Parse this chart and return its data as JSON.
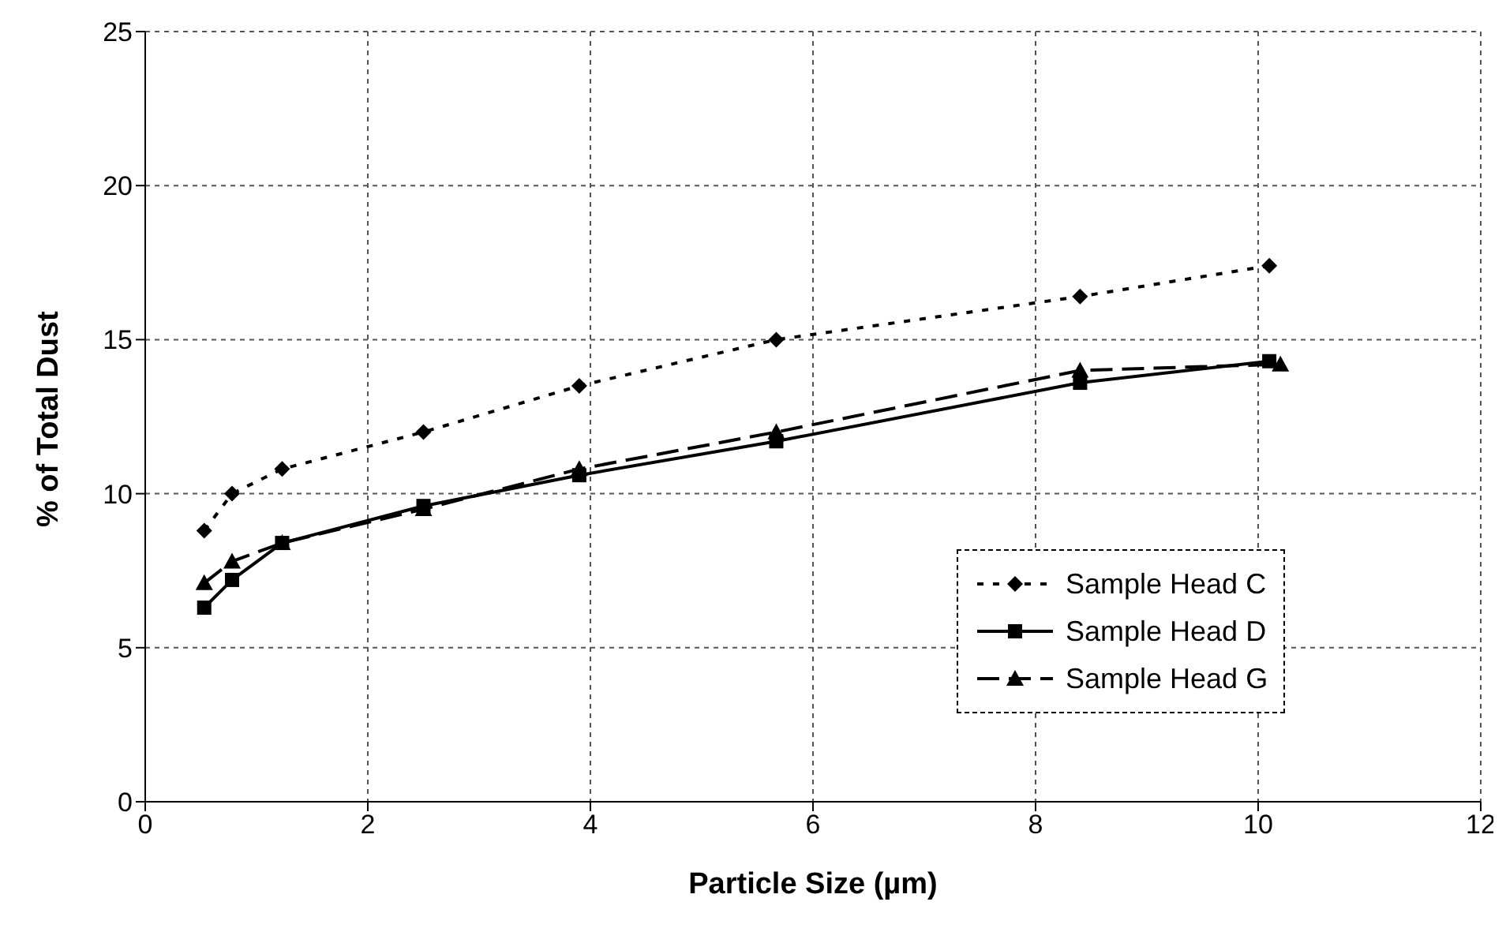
{
  "chart_data": {
    "type": "line",
    "xlabel": "Particle Size (µm)",
    "ylabel": "% of Total Dust",
    "xlim": [
      0,
      12
    ],
    "xticks": [
      0,
      2,
      4,
      6,
      8,
      10,
      12
    ],
    "ylim": [
      0,
      25
    ],
    "yticks": [
      0,
      5,
      10,
      15,
      20,
      25
    ],
    "grid": true,
    "legend": "bottom right",
    "series": [
      {
        "name": "Sample Head C",
        "color": "#000000",
        "marker": "diamond",
        "line_style": "dotted",
        "x": [
          0.53,
          0.78,
          1.23,
          2.5,
          3.9,
          5.67,
          8.4,
          10.1
        ],
        "values": [
          8.8,
          10.0,
          10.8,
          12.0,
          13.5,
          15.0,
          16.4,
          17.4
        ]
      },
      {
        "name": "Sample Head D",
        "color": "#000000",
        "marker": "square",
        "line_style": "solid",
        "x": [
          0.53,
          0.78,
          1.23,
          2.5,
          3.9,
          5.67,
          8.4,
          10.1
        ],
        "values": [
          6.3,
          7.2,
          8.4,
          9.6,
          10.6,
          11.7,
          13.6,
          14.3
        ]
      },
      {
        "name": "Sample Head G",
        "color": "#000000",
        "marker": "triangle",
        "line_style": "dashed",
        "x": [
          0.53,
          0.78,
          1.23,
          2.5,
          3.9,
          5.67,
          8.4,
          10.2
        ],
        "values": [
          7.1,
          7.8,
          8.4,
          9.5,
          10.8,
          12.0,
          14.0,
          14.2
        ]
      }
    ]
  }
}
